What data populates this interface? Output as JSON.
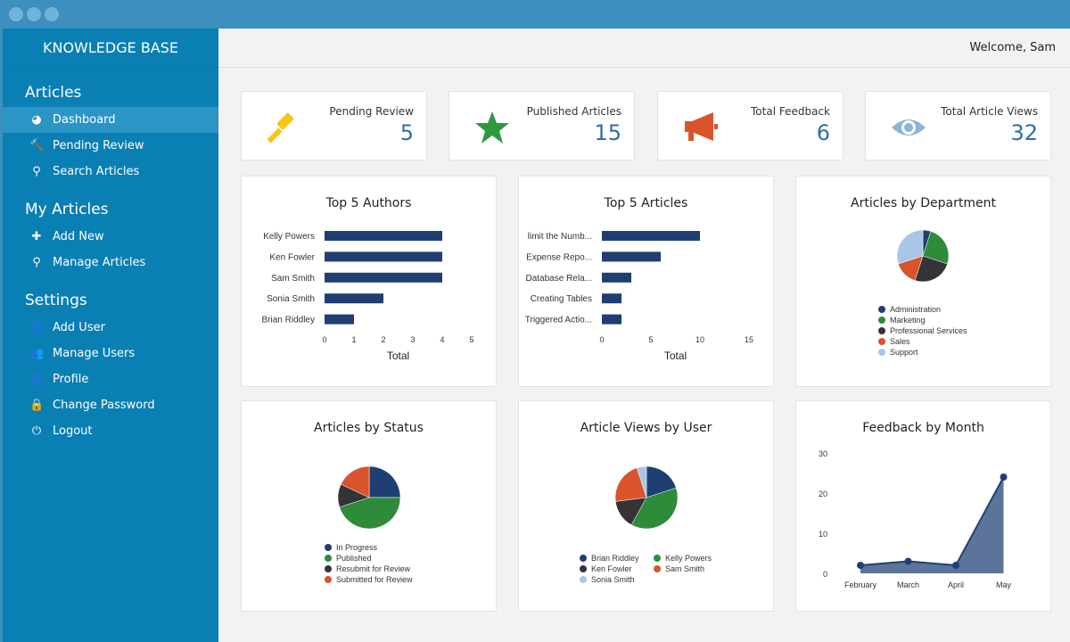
{
  "app": {
    "title": "KNOWLEDGE BASE",
    "welcome": "Welcome, Sam"
  },
  "sidebar": {
    "sections": [
      {
        "title": "Articles",
        "items": [
          {
            "label": "Dashboard",
            "icon": "dashboard-icon",
            "active": true
          },
          {
            "label": "Pending Review",
            "icon": "gavel-icon"
          },
          {
            "label": "Search Articles",
            "icon": "search-icon"
          }
        ]
      },
      {
        "title": "My Articles",
        "items": [
          {
            "label": "Add New",
            "icon": "plus-icon"
          },
          {
            "label": "Manage Articles",
            "icon": "search-icon"
          }
        ]
      },
      {
        "title": "Settings",
        "items": [
          {
            "label": "Add User",
            "icon": "user-plus-icon"
          },
          {
            "label": "Manage Users",
            "icon": "users-icon"
          },
          {
            "label": "Profile",
            "icon": "user-icon"
          },
          {
            "label": "Change Password",
            "icon": "lock-icon"
          },
          {
            "label": "Logout",
            "icon": "power-icon"
          }
        ]
      }
    ]
  },
  "stats": [
    {
      "label": "Pending Review",
      "value": "5",
      "icon": "gavel-icon",
      "color": "#f5c518"
    },
    {
      "label": "Published Articles",
      "value": "15",
      "icon": "star-icon",
      "color": "#2e9a3e"
    },
    {
      "label": "Total Feedback",
      "value": "6",
      "icon": "megaphone-icon",
      "color": "#d9532b"
    },
    {
      "label": "Total Article Views",
      "value": "32",
      "icon": "eye-icon",
      "color": "#8fb3d9"
    }
  ],
  "chart_data": [
    {
      "type": "bar",
      "orientation": "horizontal",
      "title": "Top 5 Authors",
      "xlabel": "Total",
      "categories": [
        "Kelly Powers",
        "Ken Fowler",
        "Sam Smith",
        "Sonia Smith",
        "Brian Riddley"
      ],
      "values": [
        4,
        4,
        4,
        2,
        1
      ],
      "xlim": [
        0,
        5
      ],
      "ticks": [
        "0",
        "1",
        "2",
        "3",
        "4",
        "5"
      ],
      "color": "#1f3f73"
    },
    {
      "type": "bar",
      "orientation": "horizontal",
      "title": "Top 5 Articles",
      "xlabel": "Total",
      "categories": [
        "limit the Numb...",
        "Expense Repo...",
        "Database Rela...",
        "Creating Tables",
        "Triggered Actio..."
      ],
      "values": [
        10,
        6,
        3,
        2,
        2
      ],
      "xlim": [
        0,
        15
      ],
      "ticks": [
        "0",
        "5",
        "10",
        "15"
      ],
      "color": "#1f3f73"
    },
    {
      "type": "pie",
      "title": "Articles by Department",
      "legend": "bottom",
      "labels": [
        "Administration",
        "Marketing",
        "Professional Services",
        "Sales",
        "Support"
      ],
      "values": [
        5,
        25,
        25,
        15,
        30
      ],
      "colors": [
        "#1f3f73",
        "#2e8b3a",
        "#333338",
        "#d9532b",
        "#a9c6e8"
      ]
    },
    {
      "type": "pie",
      "title": "Articles by Status",
      "legend": "bottom",
      "labels": [
        "In Progress",
        "Published",
        "Resubmit for Review",
        "Submitted for Review"
      ],
      "values": [
        25,
        45,
        12,
        18
      ],
      "colors": [
        "#1f3f73",
        "#2e8b3a",
        "#333338",
        "#d9532b"
      ]
    },
    {
      "type": "pie",
      "title": "Article Views by User",
      "legend": "bottom",
      "labels": [
        "Brian Riddley",
        "Kelly Powers",
        "Ken Fowler",
        "Sam Smith",
        "Sonia Smith"
      ],
      "values": [
        20,
        38,
        15,
        22,
        5
      ],
      "colors": [
        "#1f3f73",
        "#2e8b3a",
        "#333338",
        "#d9532b",
        "#a9c6e8"
      ]
    },
    {
      "type": "area",
      "title": "Feedback by Month",
      "categories": [
        "February",
        "March",
        "April",
        "May"
      ],
      "values": [
        2,
        3,
        2,
        24
      ],
      "ylim": [
        0,
        30
      ],
      "yticks": [
        "0",
        "10",
        "20",
        "30"
      ],
      "color": "#1f3f73"
    }
  ]
}
